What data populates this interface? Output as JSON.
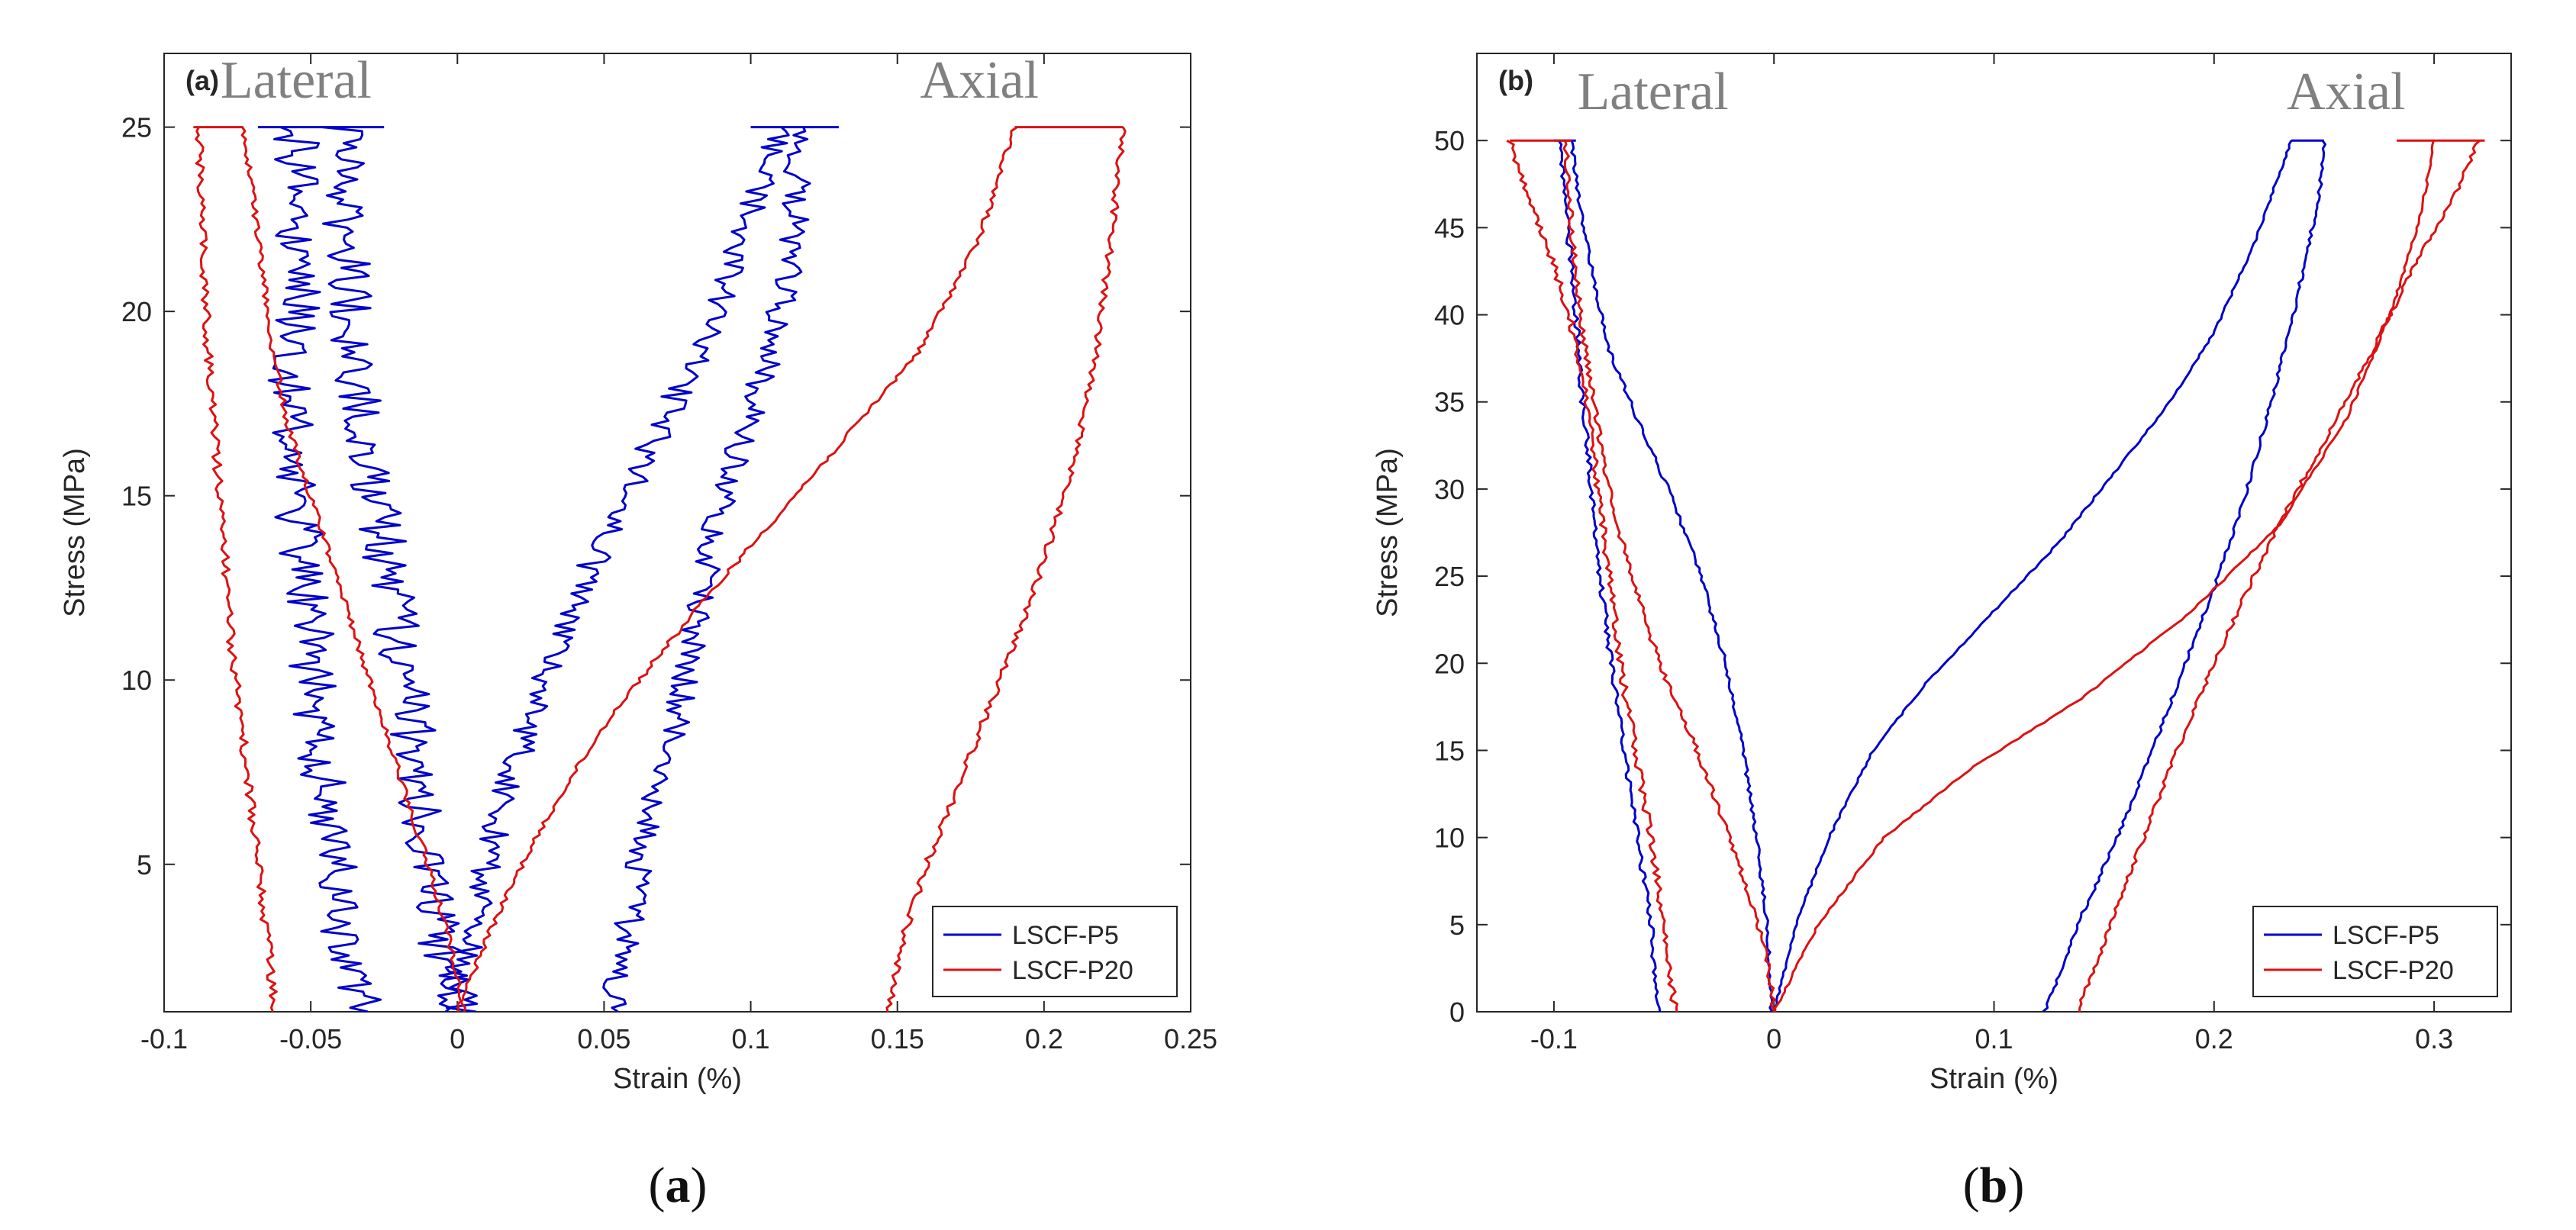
{
  "captions": [
    "(a)",
    "(b)"
  ],
  "chart_data": [
    {
      "type": "line",
      "panel_label": "(a)",
      "caption_letter": "a",
      "xlabel": "Strain (%)",
      "ylabel": "Stress (MPa)",
      "xlim": [
        -0.1,
        0.25
      ],
      "ylim": [
        1,
        27
      ],
      "xticks": [
        -0.1,
        -0.05,
        0,
        0.05,
        0.1,
        0.15,
        0.2,
        0.25
      ],
      "xtick_labels": [
        "-0.1",
        "-0.05",
        "0",
        "0.05",
        "0.1",
        "0.15",
        "0.2",
        "0.25"
      ],
      "yticks": [
        5,
        10,
        15,
        20,
        25
      ],
      "ytick_labels": [
        "5",
        "10",
        "15",
        "20",
        "25"
      ],
      "annotations": [
        {
          "text": "Lateral",
          "x": -0.055,
          "y": 25.8
        },
        {
          "text": "Axial",
          "x": 0.178,
          "y": 25.8
        }
      ],
      "legend": {
        "position": "bottom-right",
        "entries": [
          "LSCF-P5",
          "LSCF-P20"
        ]
      },
      "series": [
        {
          "name": "LSCF-P5",
          "color": "#0000cc",
          "noise": 0.008,
          "x": [
            -0.033,
            -0.04,
            -0.042,
            -0.045,
            -0.048,
            -0.05,
            -0.052,
            -0.055,
            -0.057,
            -0.056,
            -0.054,
            -0.055
          ],
          "y": [
            1,
            3,
            5,
            7,
            9,
            11,
            13,
            15,
            17,
            19,
            21,
            25
          ]
        },
        {
          "name": "LSCF-P5",
          "color": "#0000cc",
          "noise": 0.008,
          "x": [
            0,
            -0.003,
            -0.006,
            -0.01,
            -0.013,
            -0.016,
            -0.02,
            -0.024,
            -0.028,
            -0.032,
            -0.035,
            -0.038,
            -0.04
          ],
          "y": [
            1,
            2,
            3,
            5,
            7,
            9,
            11,
            13,
            15,
            17,
            19,
            22,
            25
          ]
        },
        {
          "name": "LSCF-P5",
          "color": "#0000cc",
          "noise": 0.005,
          "x": [
            -0.005,
            0,
            0.005,
            0.01,
            0.017,
            0.025,
            0.035,
            0.045,
            0.058,
            0.07,
            0.083,
            0.097,
            0.11
          ],
          "y": [
            1,
            2,
            3,
            5,
            7,
            9,
            11,
            13,
            15,
            17,
            19,
            22,
            25
          ]
        },
        {
          "name": "LSCF-P5",
          "color": "#0000cc",
          "noise": 0.005,
          "x": [
            0.052,
            0.055,
            0.06,
            0.065,
            0.072,
            0.078,
            0.083,
            0.088,
            0.095,
            0.103,
            0.11,
            0.115,
            0.117
          ],
          "y": [
            1,
            2,
            4,
            6,
            8,
            10,
            12,
            14,
            16,
            18,
            20,
            22,
            25
          ]
        },
        {
          "name": "LSCF-P5",
          "color": "#0000cc",
          "noise": 0,
          "x": [
            -0.068,
            -0.025
          ],
          "y": [
            25,
            25
          ]
        },
        {
          "name": "LSCF-P5",
          "color": "#0000cc",
          "noise": 0,
          "x": [
            0.1,
            0.13
          ],
          "y": [
            25,
            25
          ]
        },
        {
          "name": "LSCF-P20",
          "color": "#dd1111",
          "noise": 0.0015,
          "x": [
            -0.062,
            -0.065,
            -0.068,
            -0.071,
            -0.074,
            -0.077,
            -0.079,
            -0.081,
            -0.083,
            -0.085,
            -0.087,
            -0.088
          ],
          "y": [
            1,
            3,
            5,
            7,
            9,
            11,
            13,
            15,
            17,
            19,
            22,
            25
          ]
        },
        {
          "name": "LSCF-P20",
          "color": "#dd1111",
          "noise": 0.001,
          "x": [
            0.002,
            -0.003,
            -0.01,
            -0.018,
            -0.026,
            -0.034,
            -0.042,
            -0.05,
            -0.058,
            -0.063,
            -0.068,
            -0.073
          ],
          "y": [
            1,
            3,
            5,
            7,
            9,
            11,
            13,
            15,
            17,
            19,
            22,
            25
          ]
        },
        {
          "name": "LSCF-P20",
          "color": "#dd1111",
          "noise": 0.001,
          "x": [
            0,
            0.01,
            0.022,
            0.036,
            0.052,
            0.072,
            0.093,
            0.115,
            0.137,
            0.158,
            0.178,
            0.19
          ],
          "y": [
            1,
            3,
            5,
            7,
            9,
            11,
            13,
            15,
            17,
            19,
            22,
            25
          ]
        },
        {
          "name": "LSCF-P20",
          "color": "#dd1111",
          "noise": 0.0012,
          "x": [
            0.147,
            0.152,
            0.16,
            0.17,
            0.18,
            0.19,
            0.199,
            0.207,
            0.213,
            0.218,
            0.223,
            0.227
          ],
          "y": [
            1,
            3,
            5,
            7,
            9,
            11,
            13,
            15,
            17,
            19,
            22,
            25
          ]
        },
        {
          "name": "LSCF-P20",
          "color": "#dd1111",
          "noise": 0,
          "x": [
            -0.09,
            -0.073
          ],
          "y": [
            25,
            25
          ]
        },
        {
          "name": "LSCF-P20",
          "color": "#dd1111",
          "noise": 0,
          "x": [
            0.19,
            0.227
          ],
          "y": [
            25,
            25
          ]
        }
      ]
    },
    {
      "type": "line",
      "panel_label": "(b)",
      "caption_letter": "b",
      "xlabel": "Strain (%)",
      "ylabel": "Stress (MPa)",
      "xlim": [
        -0.135,
        0.335
      ],
      "ylim": [
        0,
        55
      ],
      "xticks": [
        -0.1,
        0,
        0.1,
        0.2,
        0.3
      ],
      "xtick_labels": [
        "-0.1",
        "0",
        "0.1",
        "0.2",
        "0.3"
      ],
      "yticks": [
        0,
        5,
        10,
        15,
        20,
        25,
        30,
        35,
        40,
        45,
        50
      ],
      "ytick_labels": [
        "0",
        "5",
        "10",
        "15",
        "20",
        "25",
        "30",
        "35",
        "40",
        "45",
        "50"
      ],
      "annotations": [
        {
          "text": "Lateral",
          "x": -0.055,
          "y": 51.8
        },
        {
          "text": "Axial",
          "x": 0.26,
          "y": 51.8
        }
      ],
      "legend": {
        "position": "bottom-right",
        "entries": [
          "LSCF-P5",
          "LSCF-P20"
        ]
      },
      "series": [
        {
          "name": "LSCF-P5",
          "color": "#0000cc",
          "noise": 0.0012,
          "x": [
            -0.052,
            -0.056,
            -0.062,
            -0.068,
            -0.074,
            -0.079,
            -0.083,
            -0.087,
            -0.09,
            -0.093,
            -0.096,
            -0.097
          ],
          "y": [
            0,
            5,
            10,
            15,
            20,
            25,
            30,
            35,
            40,
            44,
            48,
            50
          ]
        },
        {
          "name": "LSCF-P5",
          "color": "#0000cc",
          "noise": 0.0008,
          "x": [
            -0.001,
            -0.003,
            -0.008,
            -0.014,
            -0.022,
            -0.033,
            -0.048,
            -0.062,
            -0.075,
            -0.082,
            -0.088,
            -0.092
          ],
          "y": [
            0,
            5,
            10,
            15,
            20,
            25,
            30,
            34,
            38,
            42,
            46,
            50
          ]
        },
        {
          "name": "LSCF-P5",
          "color": "#0000cc",
          "noise": 0.0005,
          "x": [
            0,
            0.01,
            0.025,
            0.045,
            0.07,
            0.1,
            0.13,
            0.155,
            0.18,
            0.2,
            0.218,
            0.235
          ],
          "y": [
            0,
            5,
            10,
            15,
            19,
            23,
            27,
            31,
            35,
            39,
            44,
            50
          ]
        },
        {
          "name": "LSCF-P5",
          "color": "#0000cc",
          "noise": 0.0008,
          "x": [
            0.123,
            0.138,
            0.156,
            0.172,
            0.187,
            0.202,
            0.215,
            0.226,
            0.236,
            0.243,
            0.248,
            0.25
          ],
          "y": [
            0,
            5,
            10,
            15,
            20,
            25,
            30,
            35,
            40,
            44,
            47,
            50
          ]
        },
        {
          "name": "LSCF-P5",
          "color": "#0000cc",
          "noise": 0,
          "x": [
            0.235,
            0.25
          ],
          "y": [
            50,
            50
          ]
        },
        {
          "name": "LSCF-P5",
          "color": "#0000cc",
          "noise": 0,
          "x": [
            -0.1,
            -0.09
          ],
          "y": [
            50,
            50
          ]
        },
        {
          "name": "LSCF-P20",
          "color": "#dd1111",
          "noise": 0.0015,
          "x": [
            -0.045,
            -0.05,
            -0.056,
            -0.063,
            -0.07,
            -0.075,
            -0.08,
            -0.085,
            -0.093,
            -0.103,
            -0.112,
            -0.12
          ],
          "y": [
            0,
            5,
            10,
            15,
            20,
            25,
            30,
            35,
            40,
            44,
            47,
            50
          ]
        },
        {
          "name": "LSCF-P20",
          "color": "#dd1111",
          "noise": 0.0012,
          "x": [
            0,
            -0.003,
            -0.01,
            -0.02,
            -0.035,
            -0.052,
            -0.065,
            -0.075,
            -0.082,
            -0.088,
            -0.092,
            -0.095
          ],
          "y": [
            0,
            3,
            6,
            10,
            15,
            20,
            25,
            30,
            35,
            40,
            45,
            50
          ]
        },
        {
          "name": "LSCF-P20",
          "color": "#dd1111",
          "noise": 0.0006,
          "x": [
            0,
            0.02,
            0.05,
            0.09,
            0.14,
            0.19,
            0.23,
            0.26,
            0.28,
            0.29,
            0.296,
            0.3
          ],
          "y": [
            0,
            5,
            10,
            14,
            18,
            23,
            28,
            34,
            40,
            44,
            47,
            50
          ]
        },
        {
          "name": "LSCF-P20",
          "color": "#dd1111",
          "noise": 0.001,
          "x": [
            0.138,
            0.153,
            0.168,
            0.183,
            0.2,
            0.218,
            0.238,
            0.26,
            0.28,
            0.296,
            0.31,
            0.32
          ],
          "y": [
            0,
            5,
            10,
            15,
            20,
            25,
            30,
            35,
            40,
            44,
            47,
            50
          ]
        },
        {
          "name": "LSCF-P20",
          "color": "#dd1111",
          "noise": 0,
          "x": [
            -0.12,
            -0.092
          ],
          "y": [
            50,
            50
          ]
        },
        {
          "name": "LSCF-P20",
          "color": "#dd1111",
          "noise": 0,
          "x": [
            0.283,
            0.323
          ],
          "y": [
            50,
            50
          ]
        }
      ]
    }
  ]
}
